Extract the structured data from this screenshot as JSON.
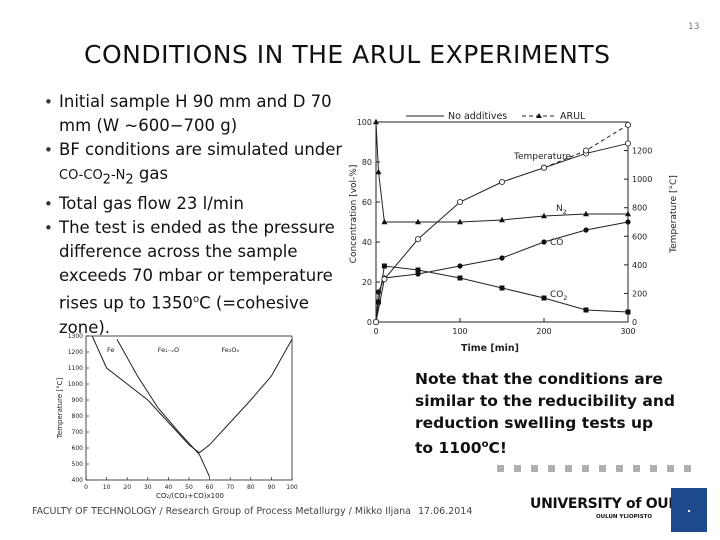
{
  "page_number": "13",
  "title": "CONDITIONS IN THE ARUL EXPERIMENTS",
  "bullets": [
    {
      "text": "Initial sample H 90 mm and D 70 mm (W ~600−700 g)"
    },
    {
      "pre": "BF conditions are simulated under ",
      "small": "CO-CO",
      "sub": "2",
      "small2": "-N",
      "sub2": "2",
      "post": " gas"
    },
    {
      "text": "Total gas flow 23 l/min"
    },
    {
      "pre": "The test is ended as the pressure difference across the sample exceeds 70 mbar or temperature rises up to 1350",
      "sup": "o",
      "post": "C (=cohesive zone)."
    }
  ],
  "note": {
    "pre": "Note that the conditions are similar to the reducibility and reduction swelling tests up to 1100",
    "sup": "o",
    "post": "C!"
  },
  "footer": {
    "left": "FACULTY OF TECHNOLOGY / Research Group of Process Metallurgy / Mikko Iljana",
    "date": "17.06.2014",
    "logo_main": "UNIVERSITY of OULU",
    "logo_sub": "OULUN YLIOPISTO"
  },
  "colors": {
    "accent_box": "#1d4a8c",
    "dots": "#b0b0b0"
  },
  "chart_data": [
    {
      "type": "line",
      "xlabel": "Time [min]",
      "ylabel": "Concentration [vol-%]",
      "y2label": "Temperature [°C]",
      "xlim": [
        0,
        300
      ],
      "ylim": [
        0,
        100
      ],
      "y2lim": [
        0,
        1400
      ],
      "x_ticks": [
        0,
        100,
        200,
        300
      ],
      "y_ticks": [
        0,
        20,
        40,
        60,
        80,
        100
      ],
      "y2_ticks": [
        0,
        200,
        400,
        600,
        800,
        1000,
        1200
      ],
      "legend": [
        "No additives",
        "ARUL"
      ],
      "legend_position": "top",
      "series": [
        {
          "name": "N2",
          "label": "N",
          "label_sub": "2",
          "group": "No additives",
          "marker": "triangle",
          "x": [
            0,
            3,
            10,
            50,
            100,
            150,
            200,
            250,
            300
          ],
          "y": [
            100,
            75,
            50,
            50,
            50,
            51,
            53,
            54,
            54
          ]
        },
        {
          "name": "CO",
          "label": "CO",
          "label_sub": "",
          "group": "No additives",
          "marker": "circle",
          "x": [
            0,
            3,
            10,
            50,
            100,
            150,
            200,
            250,
            300
          ],
          "y": [
            0,
            15,
            22,
            24,
            28,
            32,
            40,
            46,
            50
          ]
        },
        {
          "name": "CO2",
          "label": "CO",
          "label_sub": "2",
          "group": "No additives",
          "marker": "square",
          "x": [
            0,
            3,
            10,
            50,
            100,
            150,
            200,
            250,
            300
          ],
          "y": [
            0,
            10,
            28,
            26,
            22,
            17,
            12,
            6,
            5
          ]
        },
        {
          "name": "Temperature",
          "label": "Temperature",
          "label_sub": "",
          "group": "No additives",
          "axis": "y2",
          "marker": "open-circle",
          "x": [
            0,
            10,
            50,
            100,
            150,
            200,
            250,
            300
          ],
          "y": [
            0,
            300,
            580,
            840,
            980,
            1080,
            1180,
            1250
          ]
        },
        {
          "name": "Temperature ARUL",
          "label": "",
          "label_sub": "",
          "group": "ARUL",
          "axis": "y2",
          "marker": "open-circle",
          "dashed": true,
          "x": [
            200,
            250,
            300
          ],
          "y": [
            1080,
            1200,
            1380
          ]
        }
      ]
    },
    {
      "type": "line",
      "xlabel": "CO₂/(CO₂+CO)x100",
      "ylabel": "Temperature [°C]",
      "xlim": [
        0,
        100
      ],
      "ylim": [
        400,
        1300
      ],
      "x_ticks": [
        0,
        10,
        20,
        30,
        40,
        50,
        60,
        70,
        80,
        90,
        100
      ],
      "y_ticks": [
        400,
        500,
        600,
        700,
        800,
        900,
        1000,
        1100,
        1200,
        1300
      ],
      "phase_labels": [
        {
          "text": "Fe",
          "x": 12,
          "y": 1200
        },
        {
          "text": "Fe₁₋ₓO",
          "x": 40,
          "y": 1200
        },
        {
          "text": "Fe₃O₄",
          "x": 70,
          "y": 1200
        }
      ],
      "series": [
        {
          "name": "Fe / FeO boundary",
          "x": [
            3,
            10,
            20,
            30,
            40,
            50,
            55
          ],
          "y": [
            1300,
            1100,
            1000,
            900,
            760,
            620,
            570
          ]
        },
        {
          "name": "FeO / Fe3O4 boundary",
          "x": [
            55,
            60,
            70,
            80,
            90,
            100
          ],
          "y": [
            570,
            620,
            760,
            900,
            1050,
            1280
          ]
        },
        {
          "name": "Boudouard equilibrium",
          "x": [
            15,
            25,
            35,
            45,
            55,
            60
          ],
          "y": [
            1280,
            1050,
            850,
            700,
            560,
            420
          ]
        }
      ]
    }
  ]
}
